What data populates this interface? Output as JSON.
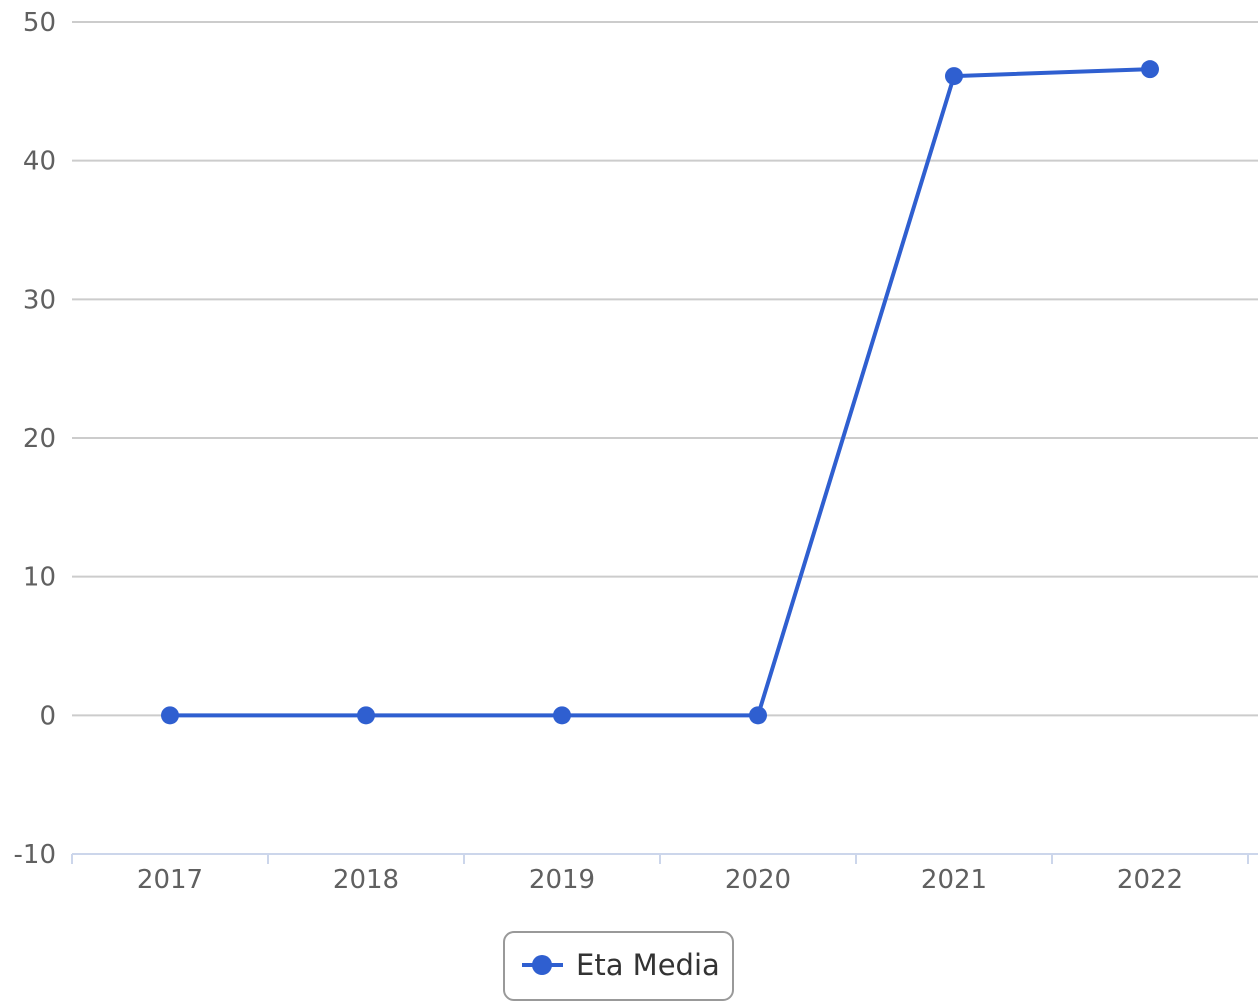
{
  "chart_data": {
    "type": "line",
    "title": "",
    "xlabel": "",
    "ylabel": "",
    "categories": [
      "2017",
      "2018",
      "2019",
      "2020",
      "2021",
      "2022"
    ],
    "series": [
      {
        "name": "Eta Media",
        "values": [
          0,
          0,
          0,
          0,
          46.1,
          46.6
        ]
      }
    ],
    "ylim": [
      -10,
      50
    ],
    "yticks": [
      -10,
      0,
      10,
      20,
      30,
      40,
      50
    ],
    "grid": true,
    "legend_position": "bottom-center",
    "colors": {
      "series": "#2f5fd0",
      "grid": "#cccccc",
      "axis": "#ccd6eb",
      "text": "#606060"
    }
  }
}
